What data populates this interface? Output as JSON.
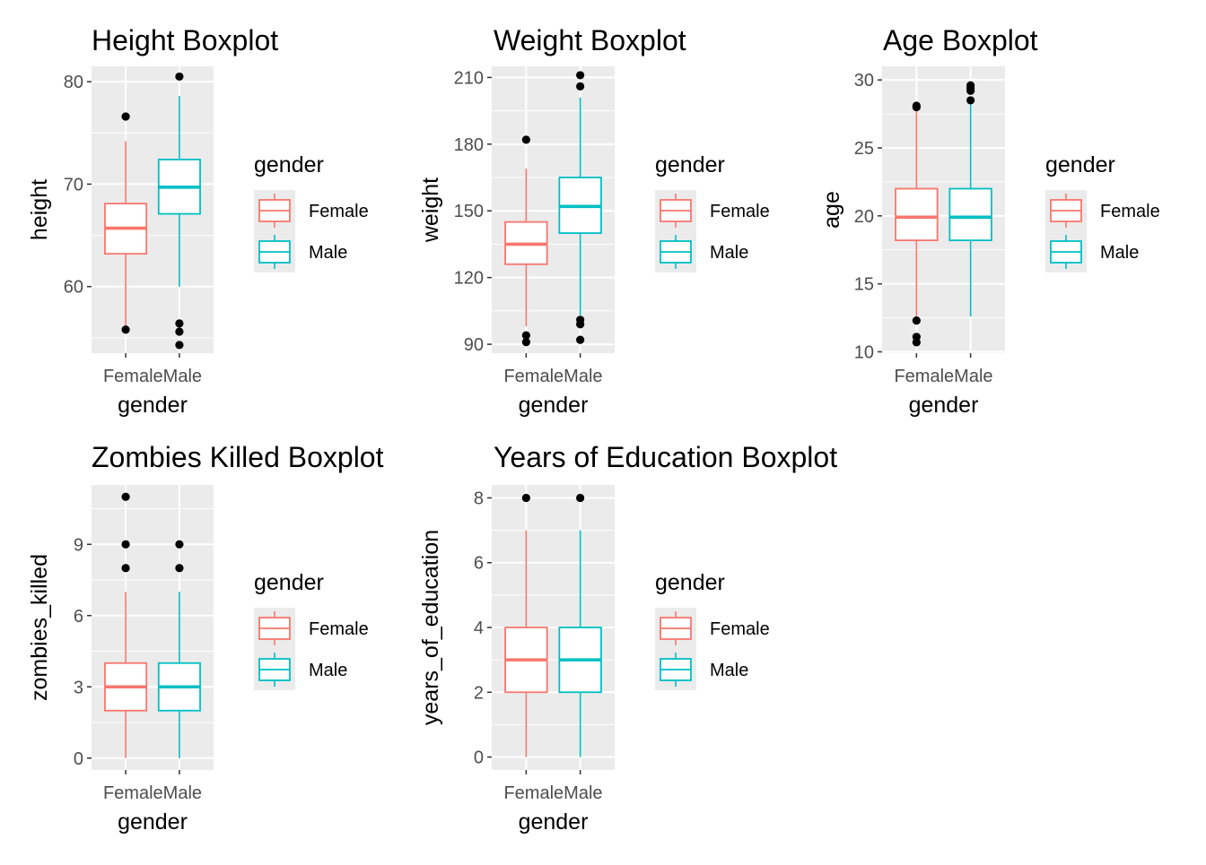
{
  "colors": {
    "Female": "#F8766D",
    "Male": "#00BFC4",
    "panel": "#EBEBEB",
    "outlier": "#000000"
  },
  "chart_data": [
    {
      "type": "boxplot",
      "title": "Height Boxplot",
      "xlabel": "gender",
      "ylabel": "height",
      "categories": [
        "Female",
        "Male"
      ],
      "x_tick_text": "FemaleMale",
      "ylim": [
        53.5,
        81.5
      ],
      "yticks": [
        60,
        70,
        80
      ],
      "ytick_labels": [
        "60",
        "70",
        "80"
      ],
      "legend_title": "gender",
      "legend_position": "right",
      "grid": true,
      "boxes": [
        {
          "group": "Female",
          "whisker_low": 55.8,
          "q1": 63.2,
          "median": 65.7,
          "q3": 68.1,
          "whisker_high": 74.2,
          "outliers": [
            76.6,
            55.8
          ]
        },
        {
          "group": "Male",
          "whisker_low": 60.0,
          "q1": 67.1,
          "median": 69.7,
          "q3": 72.4,
          "whisker_high": 78.6,
          "outliers": [
            80.5,
            56.4,
            55.6,
            54.3
          ]
        }
      ]
    },
    {
      "type": "boxplot",
      "title": "Weight Boxplot",
      "xlabel": "gender",
      "ylabel": "weight",
      "categories": [
        "Female",
        "Male"
      ],
      "x_tick_text": "FemaleMale",
      "ylim": [
        86,
        215
      ],
      "yticks": [
        90,
        120,
        150,
        180,
        210
      ],
      "ytick_labels": [
        "90",
        "120",
        "150",
        "180",
        "210"
      ],
      "legend_title": "gender",
      "legend_position": "right",
      "grid": true,
      "boxes": [
        {
          "group": "Female",
          "whisker_low": 98,
          "q1": 126,
          "median": 135,
          "q3": 145,
          "whisker_high": 169,
          "outliers": [
            182,
            94,
            91
          ]
        },
        {
          "group": "Male",
          "whisker_low": 103,
          "q1": 140,
          "median": 152,
          "q3": 165,
          "whisker_high": 201,
          "outliers": [
            211,
            206,
            101,
            99,
            92
          ]
        }
      ]
    },
    {
      "type": "boxplot",
      "title": "Age Boxplot",
      "xlabel": "gender",
      "ylabel": "age",
      "categories": [
        "Female",
        "Male"
      ],
      "x_tick_text": "FemaleMale",
      "ylim": [
        9.9,
        31.0
      ],
      "yticks": [
        10,
        15,
        20,
        25,
        30
      ],
      "ytick_labels": [
        "10",
        "15",
        "20",
        "25",
        "30"
      ],
      "legend_title": "gender",
      "legend_position": "right",
      "grid": true,
      "boxes": [
        {
          "group": "Female",
          "whisker_low": 12.4,
          "q1": 18.2,
          "median": 19.9,
          "q3": 22.0,
          "whisker_high": 27.8,
          "outliers": [
            28.1,
            28.0,
            12.3,
            11.1,
            10.7
          ]
        },
        {
          "group": "Male",
          "whisker_low": 12.6,
          "q1": 18.2,
          "median": 19.9,
          "q3": 22.0,
          "whisker_high": 28.2,
          "outliers": [
            29.6,
            29.4,
            29.2,
            28.5
          ]
        }
      ]
    },
    {
      "type": "boxplot",
      "title": "Zombies Killed Boxplot",
      "xlabel": "gender",
      "ylabel": "zombies_killed",
      "categories": [
        "Female",
        "Male"
      ],
      "x_tick_text": "FemaleMale",
      "ylim": [
        -0.5,
        11.5
      ],
      "yticks": [
        0,
        3,
        6,
        9
      ],
      "ytick_labels": [
        "0",
        "3",
        "6",
        "9"
      ],
      "legend_title": "gender",
      "legend_position": "right",
      "grid": true,
      "boxes": [
        {
          "group": "Female",
          "whisker_low": 0,
          "q1": 2,
          "median": 3,
          "q3": 4,
          "whisker_high": 7,
          "outliers": [
            11,
            9,
            8
          ]
        },
        {
          "group": "Male",
          "whisker_low": 0,
          "q1": 2,
          "median": 3,
          "q3": 4,
          "whisker_high": 7,
          "outliers": [
            9,
            8
          ]
        }
      ]
    },
    {
      "type": "boxplot",
      "title": "Years of Education Boxplot",
      "xlabel": "gender",
      "ylabel": "years_of_education",
      "categories": [
        "Female",
        "Male"
      ],
      "x_tick_text": "FemaleMale",
      "ylim": [
        -0.4,
        8.4
      ],
      "yticks": [
        0,
        2,
        4,
        6,
        8
      ],
      "ytick_labels": [
        "0",
        "2",
        "4",
        "6",
        "8"
      ],
      "legend_title": "gender",
      "legend_position": "right",
      "grid": true,
      "boxes": [
        {
          "group": "Female",
          "whisker_low": 0,
          "q1": 2,
          "median": 3,
          "q3": 4,
          "whisker_high": 7,
          "outliers": [
            8
          ]
        },
        {
          "group": "Male",
          "whisker_low": 0,
          "q1": 2,
          "median": 3,
          "q3": 4,
          "whisker_high": 7,
          "outliers": [
            8
          ]
        }
      ]
    }
  ]
}
